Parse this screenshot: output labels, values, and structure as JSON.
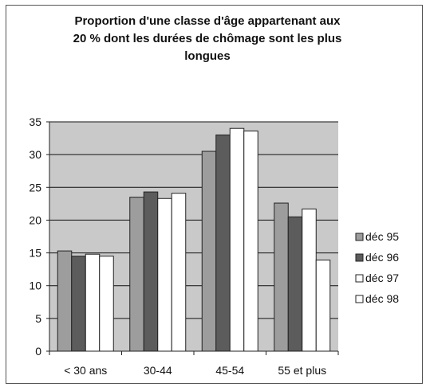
{
  "chart_data": {
    "type": "bar",
    "title_lines": [
      "Proportion d'une classe d'âge appartenant aux",
      "20 % dont les durées de chômage sont les plus",
      "longues"
    ],
    "xlabel": "",
    "ylabel": "",
    "categories": [
      "< 30 ans",
      "30-44",
      "45-54",
      "55 et plus"
    ],
    "ylim": [
      0,
      35
    ],
    "yticks": [
      0,
      5,
      10,
      15,
      20,
      25,
      30,
      35
    ],
    "grid": true,
    "legend_position": "right",
    "series": [
      {
        "name": "déc 95",
        "values": [
          15.3,
          23.5,
          30.5,
          22.6
        ]
      },
      {
        "name": "déc 96",
        "values": [
          14.5,
          24.3,
          33.0,
          20.5
        ]
      },
      {
        "name": "déc 97",
        "values": [
          14.8,
          23.3,
          34.0,
          21.7
        ]
      },
      {
        "name": "déc 98",
        "values": [
          14.5,
          24.1,
          33.6,
          13.9
        ]
      }
    ],
    "colors": {
      "plot_bg": "#c9c9c9",
      "series": [
        "#9d9d9d",
        "#5c5c5c",
        "#ffffff",
        "#ffffff"
      ],
      "bar_stroke": "#222222",
      "grid": "#111111"
    }
  }
}
